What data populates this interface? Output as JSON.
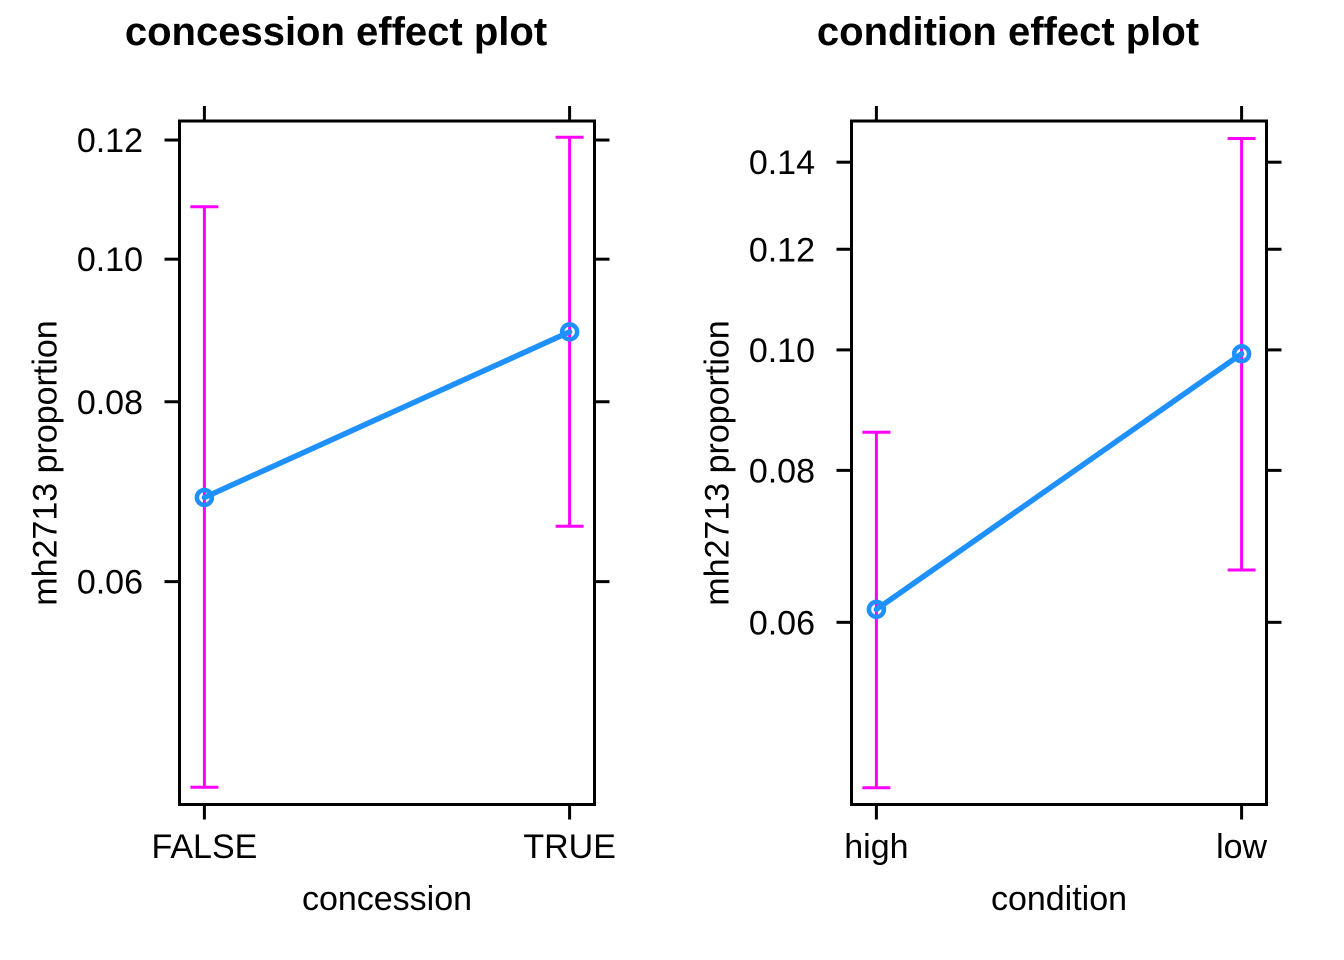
{
  "figure_background": "#FFFFFF",
  "chart_data": [
    {
      "type": "line",
      "title": "concession effect plot",
      "xlabel": "concession",
      "ylabel": "mh2713 proportion",
      "categories": [
        "FALSE",
        "TRUE"
      ],
      "values": [
        0.0687,
        0.0893
      ],
      "ci_lower": [
        0.0429,
        0.0656
      ],
      "ci_upper": [
        0.1084,
        0.1205
      ],
      "yticks": [
        0.06,
        0.08,
        0.1,
        0.12
      ],
      "ytick_labels": [
        "0.06",
        "0.08",
        "0.10",
        "0.12"
      ],
      "ylim": [
        0.0417,
        0.1235
      ],
      "yscale": "logit",
      "grid": false,
      "legend": "none",
      "line_color": "#1E90FF",
      "error_bar_color": "#FF00FF",
      "frame_color": "#000000"
    },
    {
      "type": "line",
      "title": "condition effect plot",
      "xlabel": "condition",
      "ylabel": "mh2713 proportion",
      "categories": [
        "high",
        "low"
      ],
      "values": [
        0.0615,
        0.0993
      ],
      "ci_lower": [
        0.0436,
        0.0663
      ],
      "ci_upper": [
        0.0859,
        0.1459
      ],
      "yticks": [
        0.06,
        0.08,
        0.1,
        0.12,
        0.14
      ],
      "ytick_labels": [
        "0.06",
        "0.08",
        "0.10",
        "0.12",
        "0.14"
      ],
      "ylim": [
        0.0422,
        0.1504
      ],
      "yscale": "logit",
      "grid": false,
      "legend": "none",
      "line_color": "#1E90FF",
      "error_bar_color": "#FF00FF",
      "frame_color": "#000000"
    }
  ]
}
